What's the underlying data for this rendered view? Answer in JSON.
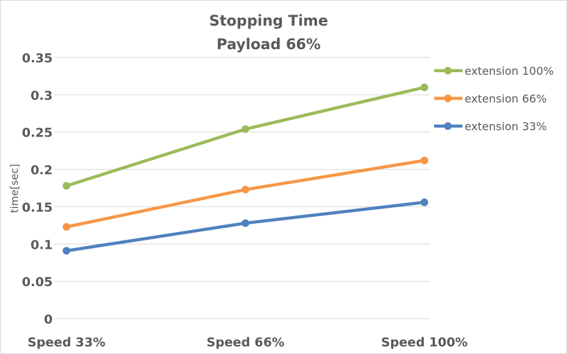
{
  "chart_data": {
    "type": "line",
    "title": "Stopping Time",
    "subtitle": "Payload 66%",
    "xlabel": "",
    "ylabel": "time[sec]",
    "categories": [
      "Speed 33%",
      "Speed 66%",
      "Speed 100%"
    ],
    "ylim": [
      0,
      0.35
    ],
    "yticks": [
      0,
      0.05,
      0.1,
      0.15,
      0.2,
      0.25,
      0.3,
      0.35
    ],
    "ytick_labels": [
      "0",
      "0.05",
      "0.1",
      "0.15",
      "0.2",
      "0.25",
      "0.3",
      "0.35"
    ],
    "grid": true,
    "legend_position": "right",
    "series": [
      {
        "name": "extension 100%",
        "color": "#9BBB59",
        "values": [
          0.178,
          0.254,
          0.31
        ]
      },
      {
        "name": "extension 66%",
        "color": "#F79646",
        "values": [
          0.123,
          0.173,
          0.212
        ]
      },
      {
        "name": "extension 33%",
        "color": "#4F81BD",
        "values": [
          0.091,
          0.128,
          0.156
        ]
      }
    ]
  }
}
